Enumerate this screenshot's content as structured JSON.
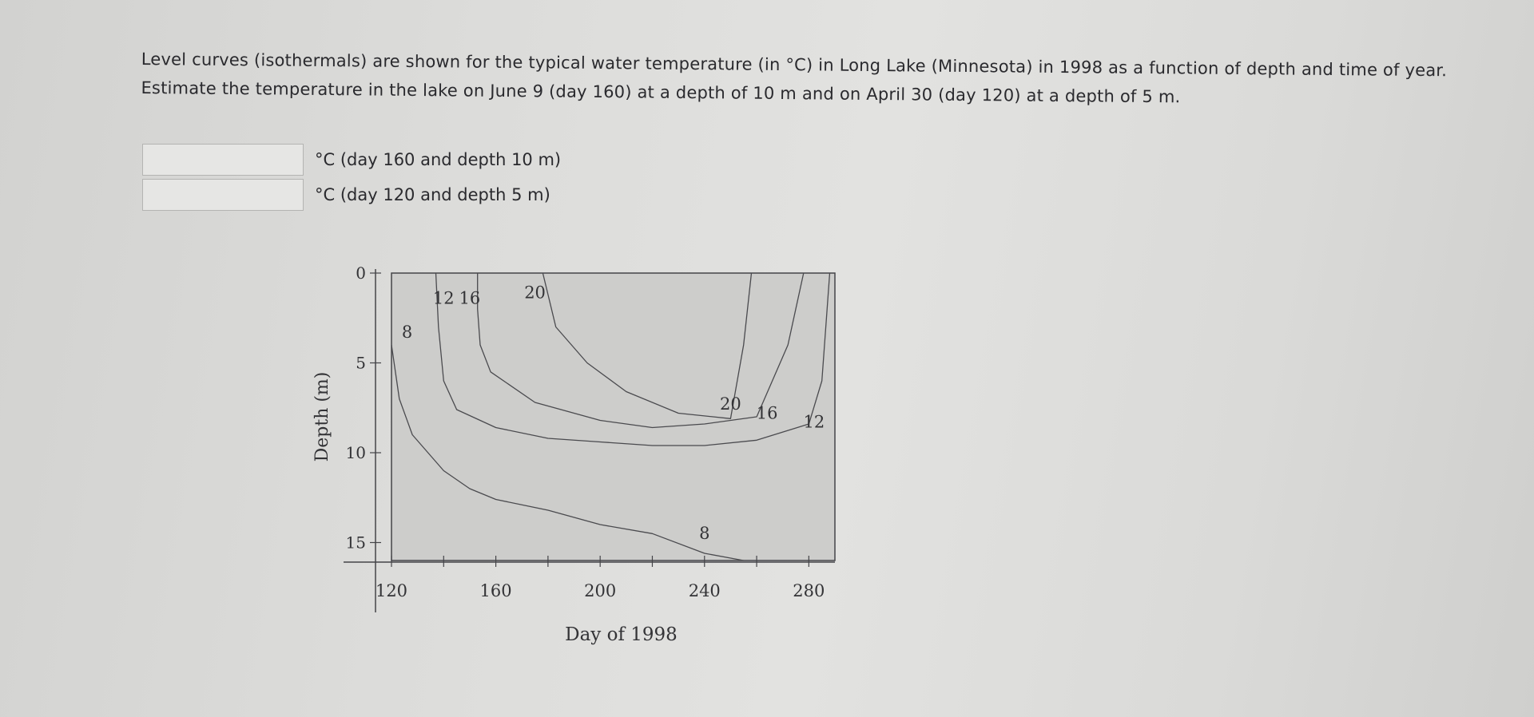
{
  "question": {
    "text": "Level curves (isothermals) are shown for the typical water temperature (in °C) in Long Lake (Minnesota) in 1998 as a function of depth and time of year. Estimate the temperature in the lake on June 9 (day 160) at a depth of 10 m and on April 30 (day 120) at a depth of 5 m."
  },
  "answers": [
    {
      "value": "",
      "unit_label": "°C (day 160 and depth 10 m)"
    },
    {
      "value": "",
      "unit_label": "°C (day 120 and depth 5 m)"
    }
  ],
  "chart_data": {
    "type": "contour",
    "title": "",
    "xlabel": "Day of 1998",
    "ylabel": "Depth (m)",
    "xlim": [
      120,
      290
    ],
    "ylim": [
      0,
      16
    ],
    "y_inverted": true,
    "x_ticks": [
      120,
      160,
      200,
      240,
      280
    ],
    "y_ticks": [
      0,
      5,
      10,
      15
    ],
    "contours": [
      {
        "level": 8,
        "label": "8",
        "points": [
          [
            120,
            4
          ],
          [
            123,
            7
          ],
          [
            128,
            9
          ],
          [
            140,
            11
          ],
          [
            150,
            12
          ],
          [
            160,
            12.6
          ],
          [
            180,
            13.2
          ],
          [
            200,
            14
          ],
          [
            220,
            14.5
          ],
          [
            240,
            15.6
          ],
          [
            255,
            16
          ]
        ]
      },
      {
        "level": 12,
        "label": "12",
        "points": [
          [
            137,
            0
          ],
          [
            138,
            3
          ],
          [
            140,
            6
          ],
          [
            145,
            7.6
          ],
          [
            160,
            8.6
          ],
          [
            180,
            9.2
          ],
          [
            200,
            9.4
          ],
          [
            220,
            9.6
          ],
          [
            240,
            9.6
          ],
          [
            260,
            9.3
          ],
          [
            280,
            8.4
          ],
          [
            285,
            6
          ],
          [
            288,
            0
          ]
        ]
      },
      {
        "level": 16,
        "label": "16",
        "points": [
          [
            153,
            0
          ],
          [
            153,
            2
          ],
          [
            154,
            4
          ],
          [
            158,
            5.5
          ],
          [
            175,
            7.2
          ],
          [
            200,
            8.2
          ],
          [
            220,
            8.6
          ],
          [
            240,
            8.4
          ],
          [
            260,
            8
          ],
          [
            272,
            4
          ],
          [
            278,
            0
          ]
        ]
      },
      {
        "level": 20,
        "label": "20",
        "points": [
          [
            178,
            0
          ],
          [
            183,
            3
          ],
          [
            195,
            5
          ],
          [
            210,
            6.6
          ],
          [
            230,
            7.8
          ],
          [
            250,
            8.1
          ],
          [
            255,
            4
          ],
          [
            258,
            0
          ]
        ]
      }
    ],
    "contour_labels": [
      {
        "text": "12",
        "x": 140,
        "y": 1.7
      },
      {
        "text": "16",
        "x": 150,
        "y": 1.7
      },
      {
        "text": "20",
        "x": 175,
        "y": 1.4
      },
      {
        "text": "8",
        "x": 126,
        "y": 3.6
      },
      {
        "text": "20",
        "x": 250,
        "y": 7.6
      },
      {
        "text": "16",
        "x": 264,
        "y": 8.1
      },
      {
        "text": "12",
        "x": 282,
        "y": 8.6
      },
      {
        "text": "8",
        "x": 240,
        "y": 14.8
      }
    ]
  }
}
